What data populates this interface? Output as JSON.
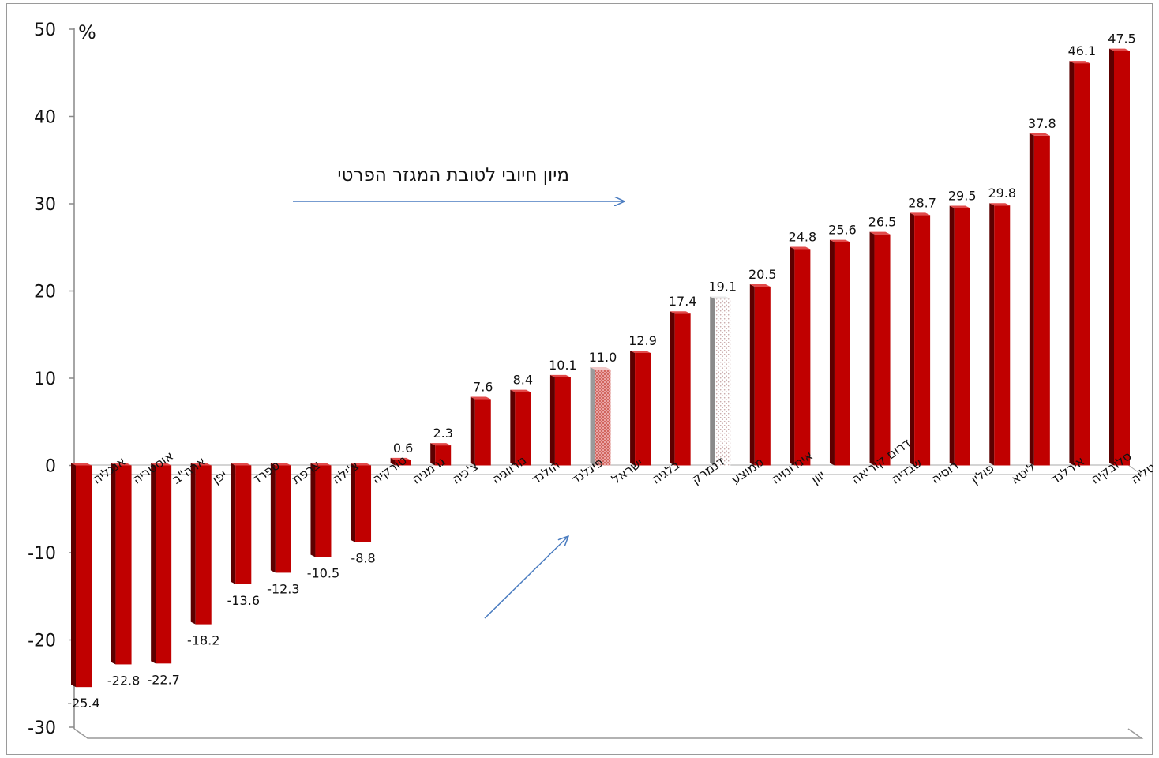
{
  "chart_data": {
    "type": "bar",
    "unit_label": "%",
    "ylim": [
      -30,
      50
    ],
    "yticks": [
      "50",
      "40",
      "30",
      "20",
      "10",
      "0",
      "-10",
      "-20",
      "-30"
    ],
    "ytick_values": [
      50,
      40,
      30,
      20,
      10,
      0,
      -10,
      -20,
      -30
    ],
    "categories": [
      "אנגליה",
      "אוסטריה",
      "ארה\"ב",
      "יפן",
      "ספרד",
      "צרפת",
      "צ'ילה",
      "טורקיה",
      "גרמניה",
      "צ'כיה",
      "נורווגיה",
      "הולנד",
      "פינלנד",
      "ישראל",
      "בלגיה",
      "דנמרק",
      "ממוצע",
      "אינדונזיה",
      "יוון",
      "דרום קוריאה",
      "שבדיה",
      "רוסיה",
      "פולין",
      "ליטא",
      "אירלנד",
      "סלובקיה",
      "איטליה"
    ],
    "values": [
      -25.4,
      -22.8,
      -22.7,
      -18.2,
      -13.6,
      -12.3,
      -10.5,
      -8.8,
      0.6,
      2.3,
      7.6,
      8.4,
      10.1,
      11.0,
      12.9,
      17.4,
      19.1,
      20.5,
      24.8,
      25.6,
      26.5,
      28.7,
      29.5,
      29.8,
      37.8,
      46.1,
      47.5
    ],
    "value_labels": [
      "-25.4",
      "-22.8",
      "-22.7",
      "-18.2",
      "-13.6",
      "-12.3",
      "-10.5",
      "-8.8",
      "0.6",
      "2.3",
      "7.6",
      "8.4",
      "10.1",
      "11.0",
      "12.9",
      "17.4",
      "19.1",
      "20.5",
      "24.8",
      "25.6",
      "26.5",
      "28.7",
      "29.5",
      "29.8",
      "37.8",
      "46.1",
      "47.5"
    ],
    "highlight": {
      "ישראל": "pink-dotted",
      "ממוצע": "white-dotted"
    },
    "colors": {
      "bar": "#c00000",
      "bar_side": "#5c0000",
      "bar_top": "#e24a4a",
      "israel": "#d97a7a",
      "average": "#f3f3f3",
      "axis": "#888888",
      "arrow": "#4a7cc0"
    },
    "annotation": "מיון חיובי לטובת המגזר הפרטי",
    "grid": false,
    "legend": "none"
  }
}
